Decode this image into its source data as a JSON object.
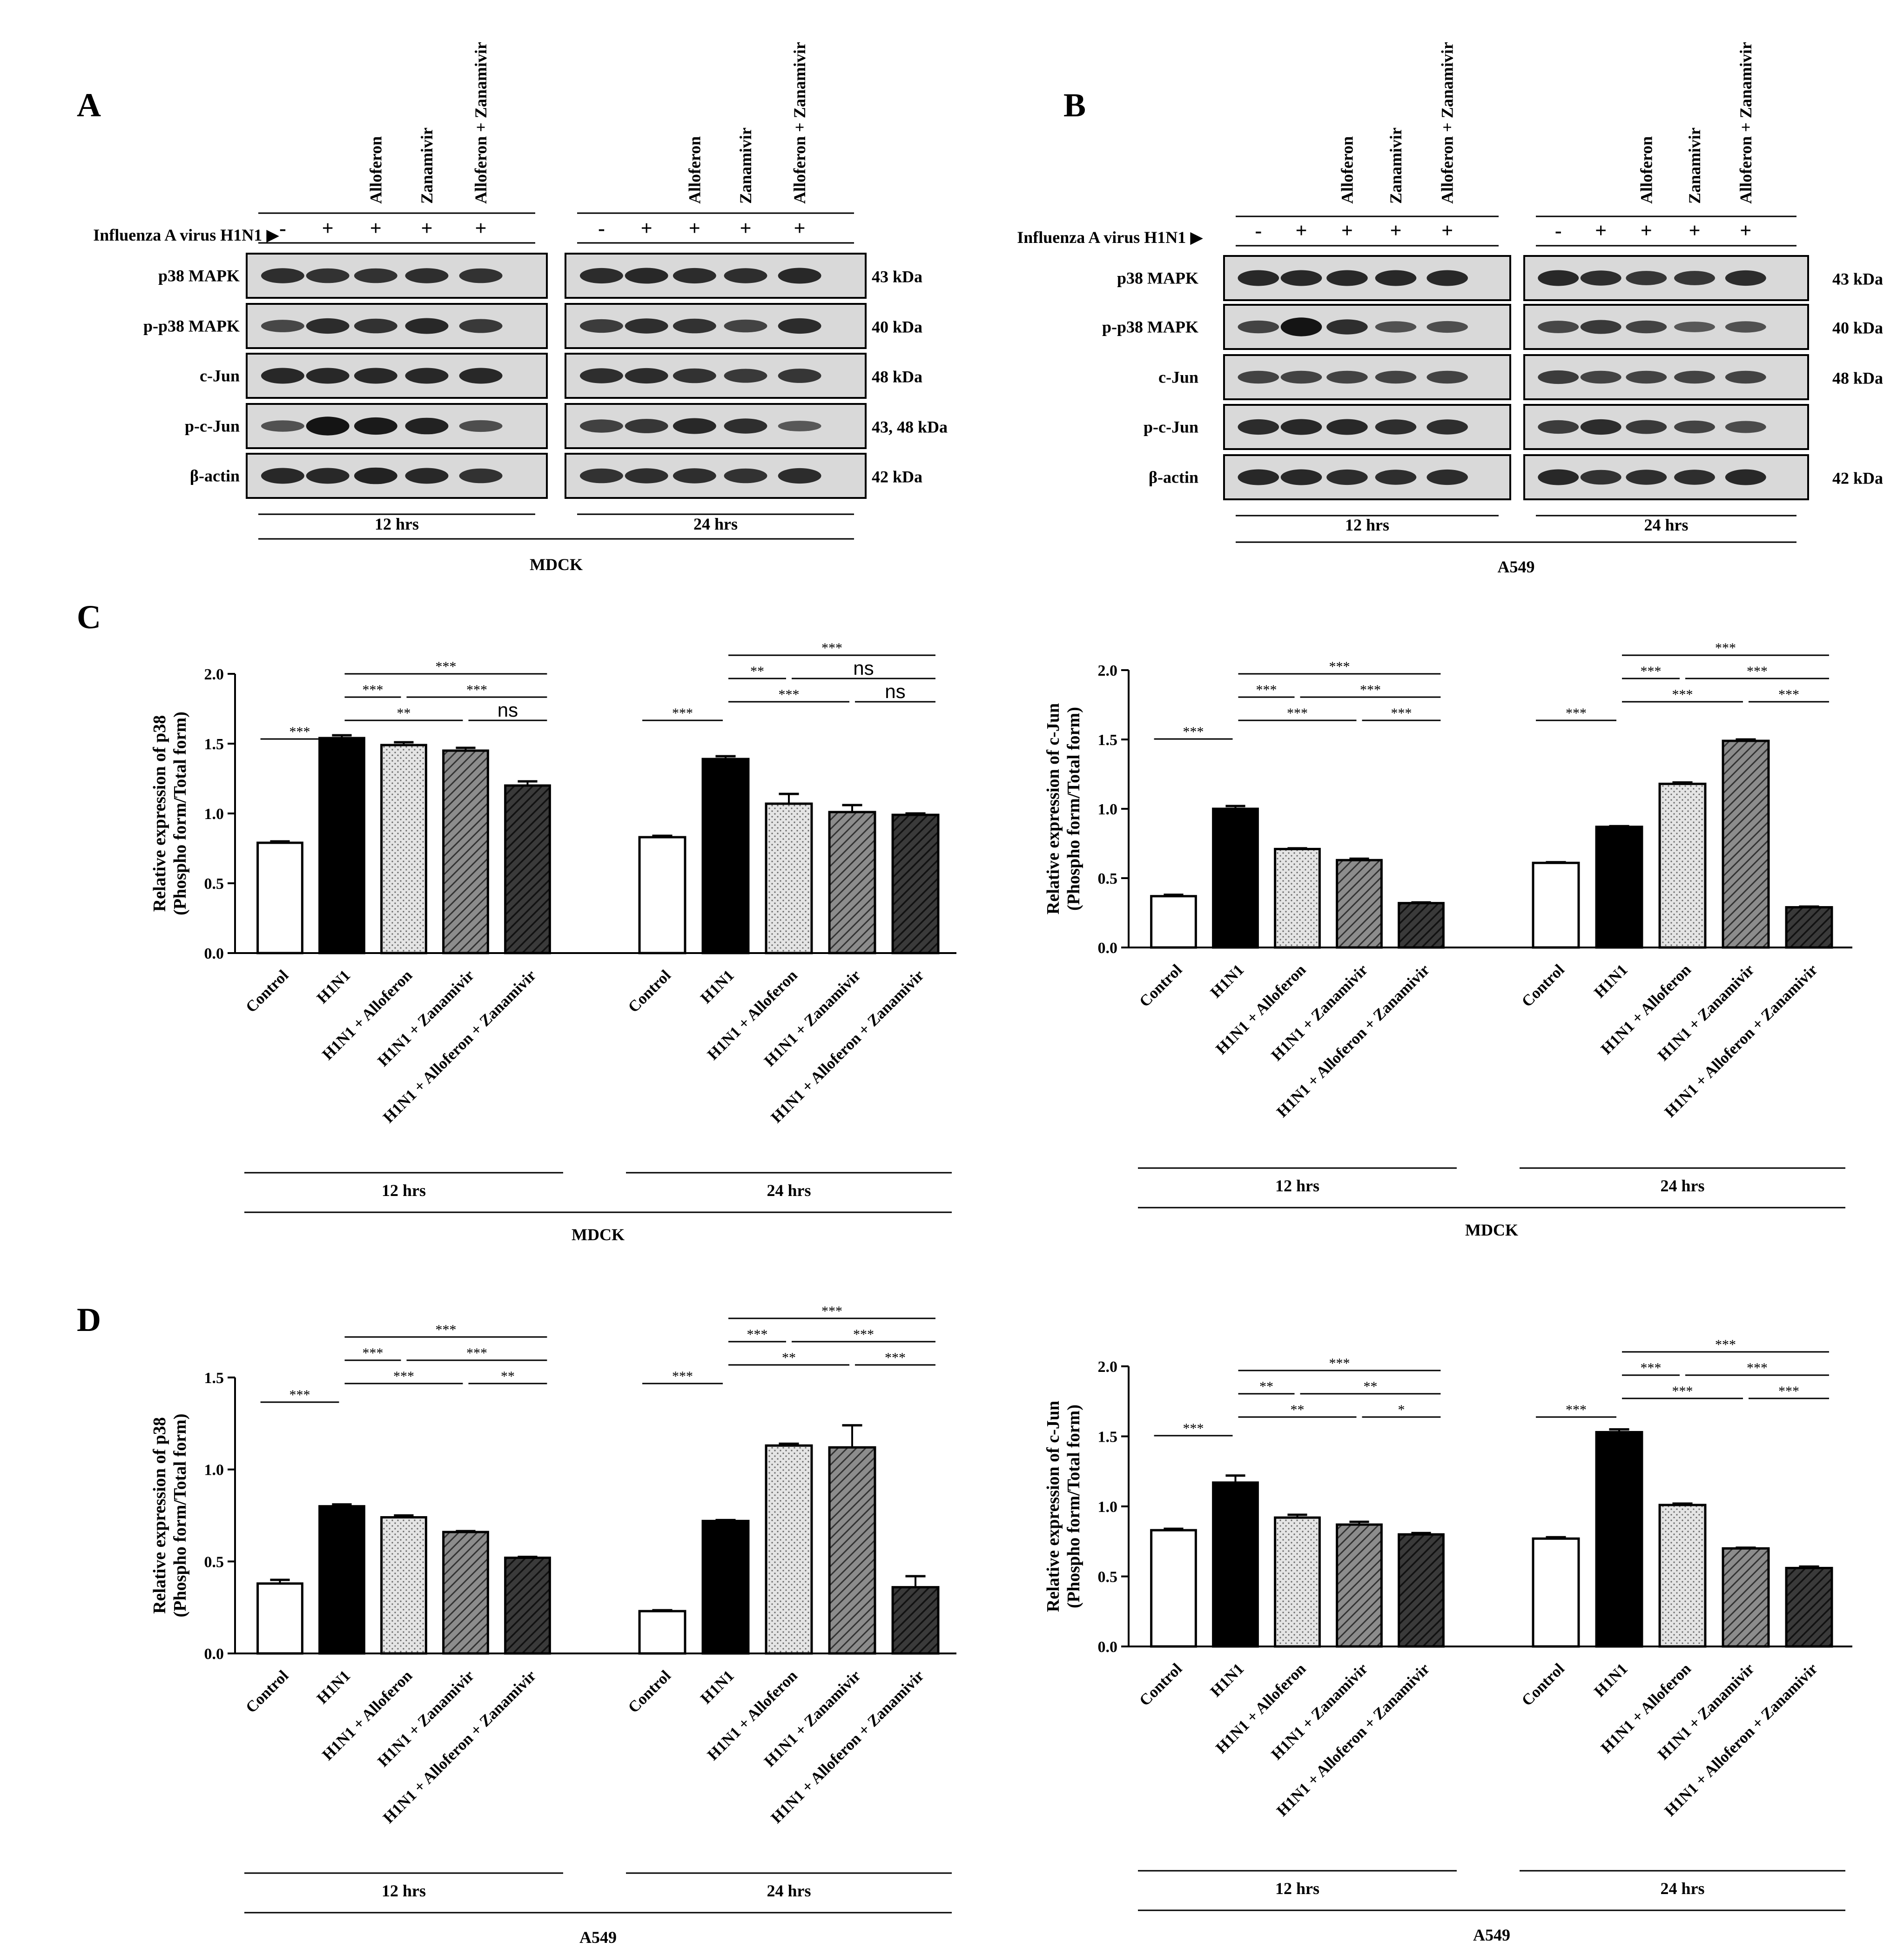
{
  "figure": {
    "panel_letters": [
      "A",
      "B",
      "C",
      "D"
    ]
  },
  "blots": [
    {
      "letter": "A",
      "cell_line": "MDCK",
      "virus_label": "Influenza A virus H1N1 ▶",
      "treatment_labels": [
        "Alloferon",
        "Zanamivir",
        "Alloferon + Zanamivir"
      ],
      "signs": [
        "-",
        "+",
        "+",
        "+",
        "+"
      ],
      "proteins": [
        "p38 MAPK",
        "p-p38 MAPK",
        "c-Jun",
        "p-c-Jun",
        "β-actin"
      ],
      "kda": [
        "43 kDa",
        "40 kDa",
        "48 kDa",
        "43, 48 kDa",
        "42 kDa"
      ],
      "times": [
        "12 hrs",
        "24 hrs"
      ]
    },
    {
      "letter": "B",
      "cell_line": "A549",
      "virus_label": "Influenza A virus H1N1 ▶",
      "treatment_labels": [
        "Alloferon",
        "Zanamivir",
        "Alloferon + Zanamivir"
      ],
      "signs": [
        "-",
        "+",
        "+",
        "+",
        "+"
      ],
      "proteins": [
        "p38 MAPK",
        "p-p38 MAPK",
        "c-Jun",
        "p-c-Jun",
        "β-actin"
      ],
      "kda": [
        "43 kDa",
        "40 kDa",
        "48 kDa",
        "",
        "42 kDa"
      ],
      "times": [
        "12 hrs",
        "24 hrs"
      ]
    }
  ],
  "chart_data": [
    {
      "type": "bar",
      "panel": "C",
      "cell_line": "MDCK",
      "ylabel": [
        "Relative expression of p38",
        "(Phospho form/Total form)"
      ],
      "ylim": [
        0,
        2.0
      ],
      "yticks": [
        "0.0",
        "0.5",
        "1.0",
        "1.5",
        "2.0"
      ],
      "categories": [
        "Control",
        "H1N1",
        "H1N1 + Alloferon",
        "H1N1 + Zanamivir",
        "H1N1 + Alloferon + Zanamivir"
      ],
      "groups": [
        {
          "name": "12 hrs",
          "values": [
            0.79,
            1.54,
            1.49,
            1.45,
            1.2
          ],
          "errors": [
            0.01,
            0.02,
            0.02,
            0.02,
            0.03
          ],
          "sig": [
            {
              "text": "***"
            },
            {
              "text": "**"
            },
            {
              "text": "ns"
            },
            {
              "text": "***"
            },
            {
              "text": "***"
            },
            {
              "text": "***"
            }
          ]
        },
        {
          "name": "24 hrs",
          "values": [
            0.83,
            1.39,
            1.07,
            1.01,
            0.99
          ],
          "errors": [
            0.01,
            0.02,
            0.07,
            0.05,
            0.01
          ],
          "sig": [
            {
              "text": "***"
            },
            {
              "text": "***"
            },
            {
              "text": "ns"
            },
            {
              "text": "**"
            },
            {
              "text": "ns"
            },
            {
              "text": "***"
            }
          ]
        }
      ]
    },
    {
      "type": "bar",
      "panel": "C",
      "cell_line": "MDCK",
      "ylabel": [
        "Relative expression of c-Jun",
        "(Phospho form/Total form)"
      ],
      "ylim": [
        0,
        2.0
      ],
      "yticks": [
        "0.0",
        "0.5",
        "1.0",
        "1.5",
        "2.0"
      ],
      "categories": [
        "Control",
        "H1N1",
        "H1N1 + Alloferon",
        "H1N1 + Zanamivir",
        "H1N1 + Alloferon + Zanamivir"
      ],
      "groups": [
        {
          "name": "12 hrs",
          "values": [
            0.37,
            1.0,
            0.71,
            0.63,
            0.32
          ],
          "errors": [
            0.01,
            0.02,
            0.005,
            0.01,
            0.005
          ],
          "sig": [
            {
              "text": "***"
            },
            {
              "text": "***"
            },
            {
              "text": "***"
            },
            {
              "text": "***"
            },
            {
              "text": "***"
            },
            {
              "text": "***"
            }
          ]
        },
        {
          "name": "24 hrs",
          "values": [
            0.61,
            0.87,
            1.18,
            1.49,
            0.29
          ],
          "errors": [
            0.005,
            0.005,
            0.01,
            0.01,
            0.005
          ],
          "sig": [
            {
              "text": "***"
            },
            {
              "text": "***"
            },
            {
              "text": "***"
            },
            {
              "text": "***"
            },
            {
              "text": "***"
            },
            {
              "text": "***"
            }
          ]
        }
      ]
    },
    {
      "type": "bar",
      "panel": "D",
      "cell_line": "A549",
      "ylabel": [
        "Relative expression of p38",
        "(Phospho form/Total form)"
      ],
      "ylim": [
        0,
        1.5
      ],
      "yticks": [
        "0.0",
        "0.5",
        "1.0",
        "1.5"
      ],
      "categories": [
        "Control",
        "H1N1",
        "H1N1 + Alloferon",
        "H1N1 + Zanamivir",
        "H1N1 + Alloferon + Zanamivir"
      ],
      "groups": [
        {
          "name": "12 hrs",
          "values": [
            0.38,
            0.8,
            0.74,
            0.66,
            0.52
          ],
          "errors": [
            0.02,
            0.01,
            0.01,
            0.005,
            0.005
          ],
          "sig": [
            {
              "text": "***"
            },
            {
              "text": "***"
            },
            {
              "text": "**"
            },
            {
              "text": "***"
            },
            {
              "text": "***"
            },
            {
              "text": "***"
            }
          ]
        },
        {
          "name": "24 hrs",
          "values": [
            0.23,
            0.72,
            1.13,
            1.12,
            0.36
          ],
          "errors": [
            0.005,
            0.005,
            0.01,
            0.12,
            0.06
          ],
          "sig": [
            {
              "text": "***"
            },
            {
              "text": "**"
            },
            {
              "text": "***"
            },
            {
              "text": "***"
            },
            {
              "text": "***"
            },
            {
              "text": "***"
            }
          ]
        }
      ]
    },
    {
      "type": "bar",
      "panel": "D",
      "cell_line": "A549",
      "ylabel": [
        "Relative expression of c-Jun",
        "(Phospho form/Total form)"
      ],
      "ylim": [
        0,
        2.0
      ],
      "yticks": [
        "0.0",
        "0.5",
        "1.0",
        "1.5",
        "2.0"
      ],
      "categories": [
        "Control",
        "H1N1",
        "H1N1 + Alloferon",
        "H1N1 + Zanamivir",
        "H1N1 + Alloferon + Zanamivir"
      ],
      "groups": [
        {
          "name": "12 hrs",
          "values": [
            0.83,
            1.17,
            0.92,
            0.87,
            0.8
          ],
          "errors": [
            0.01,
            0.05,
            0.02,
            0.02,
            0.01
          ],
          "sig": [
            {
              "text": "***"
            },
            {
              "text": "**"
            },
            {
              "text": "*"
            },
            {
              "text": "**"
            },
            {
              "text": "**"
            },
            {
              "text": "***"
            }
          ]
        },
        {
          "name": "24 hrs",
          "values": [
            0.77,
            1.53,
            1.01,
            0.7,
            0.56
          ],
          "errors": [
            0.01,
            0.02,
            0.01,
            0.005,
            0.01
          ],
          "sig": [
            {
              "text": "***"
            },
            {
              "text": "***"
            },
            {
              "text": "***"
            },
            {
              "text": "***"
            },
            {
              "text": "***"
            },
            {
              "text": "***"
            }
          ]
        }
      ]
    }
  ]
}
